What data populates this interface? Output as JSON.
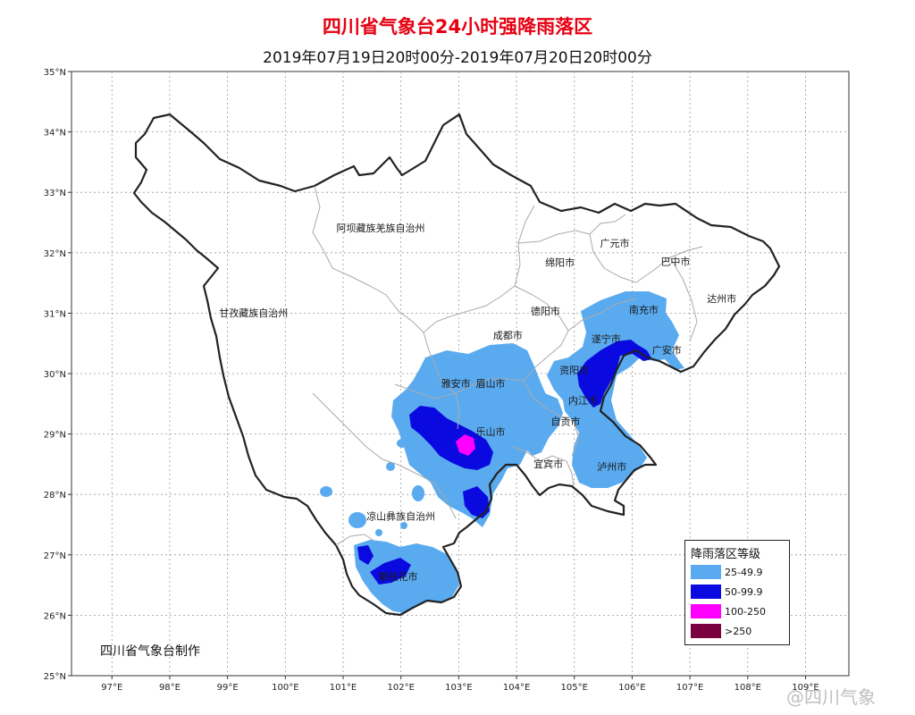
{
  "title": "四川省气象台24小时强降雨落区",
  "subtitle": "2019年07月19日20时00分-2019年07月20日20时00分",
  "credit": "四川省气象台制作",
  "watermark": "@四川气象",
  "axes": {
    "lat_labels": [
      "35°N",
      "34°N",
      "33°N",
      "32°N",
      "31°N",
      "30°N",
      "29°N",
      "28°N",
      "27°N",
      "26°N",
      "25°N"
    ],
    "lon_labels": [
      "97°E",
      "98°E",
      "99°E",
      "100°E",
      "101°E",
      "102°E",
      "103°E",
      "104°E",
      "105°E",
      "106°E",
      "107°E",
      "108°E",
      "109°E"
    ]
  },
  "places": [
    {
      "name": "阿坝藏族羌族自治州",
      "lon": 101.65,
      "lat": 32.35
    },
    {
      "name": "甘孜藏族自治州",
      "lon": 99.45,
      "lat": 30.95
    },
    {
      "name": "绵阳市",
      "lon": 104.75,
      "lat": 31.78
    },
    {
      "name": "广元市",
      "lon": 105.7,
      "lat": 32.1
    },
    {
      "name": "巴中市",
      "lon": 106.75,
      "lat": 31.8
    },
    {
      "name": "达州市",
      "lon": 107.55,
      "lat": 31.18
    },
    {
      "name": "南充市",
      "lon": 106.2,
      "lat": 31.0
    },
    {
      "name": "德阳市",
      "lon": 104.5,
      "lat": 30.98
    },
    {
      "name": "成都市",
      "lon": 103.85,
      "lat": 30.58
    },
    {
      "name": "遂宁市",
      "lon": 105.55,
      "lat": 30.52
    },
    {
      "name": "广安市",
      "lon": 106.6,
      "lat": 30.33
    },
    {
      "name": "资阳市",
      "lon": 105.0,
      "lat": 30.0
    },
    {
      "name": "雅安市",
      "lon": 102.95,
      "lat": 29.78
    },
    {
      "name": "眉山市",
      "lon": 103.55,
      "lat": 29.78
    },
    {
      "name": "内江市",
      "lon": 105.15,
      "lat": 29.5
    },
    {
      "name": "自贡市",
      "lon": 104.85,
      "lat": 29.15
    },
    {
      "name": "乐山市",
      "lon": 103.55,
      "lat": 28.98
    },
    {
      "name": "宜宾市",
      "lon": 104.55,
      "lat": 28.45
    },
    {
      "name": "泸州市",
      "lon": 105.65,
      "lat": 28.4
    },
    {
      "name": "凉山彝族自治州",
      "lon": 102.0,
      "lat": 27.58
    },
    {
      "name": "攀枝花市",
      "lon": 101.95,
      "lat": 26.58
    }
  ],
  "legend": {
    "title": "降雨落区等级",
    "items": [
      {
        "label": "25-49.9",
        "color": "#5aaaf0"
      },
      {
        "label": "50-99.9",
        "color": "#0a0ae0"
      },
      {
        "label": "100-250",
        "color": "#ff00ff"
      },
      {
        "label": ">250",
        "color": "#7a0040"
      }
    ]
  }
}
